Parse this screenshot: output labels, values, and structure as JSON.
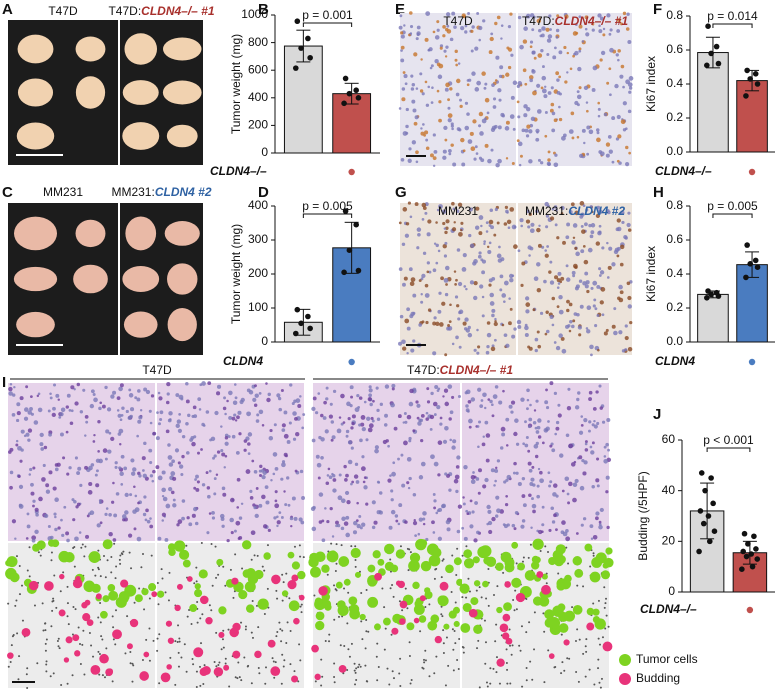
{
  "images": [
    {
      "letter": "A",
      "left": "T47D",
      "right_prefix": "T47D:",
      "right_gene": "CLDN4–/– #1",
      "gene_color": "#a8302c"
    },
    {
      "letter": "C",
      "left": "MM231",
      "right_prefix": "MM231:",
      "right_gene": "CLDN4 #2",
      "gene_color": "#2f62a3"
    },
    {
      "letter": "E",
      "left": "T47D",
      "right_prefix": "T47D:",
      "right_gene": "CLDN4–/– #1",
      "gene_color": "#a8302c"
    },
    {
      "letter": "G",
      "left": "MM231",
      "right_prefix": "MM231:",
      "right_gene": "CLDN4 #2",
      "gene_color": "#2f62a3"
    },
    {
      "letter": "I",
      "left": "T47D",
      "right_prefix": "T47D:",
      "right_gene": "CLDN4–/– #1",
      "gene_color": "#a8302c"
    }
  ],
  "legend": [
    {
      "name": "Tumor cells",
      "color": "#7ed321"
    },
    {
      "name": "Budding",
      "color": "#e8337a"
    }
  ],
  "chart_data": [
    {
      "type": "bar",
      "letter": "B",
      "ylabel": "Tumor weight (mg)",
      "group_label": "CLDN4–/–",
      "label_color": "#a8302c",
      "colors": [
        "#d9d9d9",
        "#c0504d"
      ],
      "values": [
        775,
        430
      ],
      "errors": [
        115,
        75
      ],
      "points": [
        [
          955,
          830,
          760,
          690,
          615
        ],
        [
          540,
          455,
          430,
          400,
          360
        ]
      ],
      "p_label": "p = 0.001",
      "ylim": [
        0,
        1000
      ],
      "yticks": [
        0,
        200,
        400,
        600,
        800,
        1000
      ]
    },
    {
      "type": "bar",
      "letter": "D",
      "ylabel": "Tumor weight (mg)",
      "group_label": "CLDN4",
      "label_color": "#2f62a3",
      "colors": [
        "#d9d9d9",
        "#4a7cc0"
      ],
      "values": [
        58,
        277
      ],
      "errors": [
        38,
        75
      ],
      "points": [
        [
          95,
          75,
          55,
          40,
          25
        ],
        [
          385,
          345,
          270,
          210,
          205
        ]
      ],
      "p_label": "p = 0.005",
      "ylim": [
        0,
        400
      ],
      "yticks": [
        0,
        100,
        200,
        300,
        400
      ]
    },
    {
      "type": "bar",
      "letter": "F",
      "ylabel": "Ki67 index",
      "group_label": "CLDN4–/–",
      "label_color": "#a8302c",
      "colors": [
        "#d9d9d9",
        "#c0504d"
      ],
      "values": [
        0.585,
        0.42
      ],
      "errors": [
        0.09,
        0.06
      ],
      "points": [
        [
          0.74,
          0.62,
          0.58,
          0.52,
          0.51
        ],
        [
          0.48,
          0.46,
          0.43,
          0.4,
          0.33
        ]
      ],
      "p_label": "p = 0.014",
      "ylim": [
        0,
        0.8
      ],
      "yticks": [
        {
          "value": 0,
          "label": "0.0"
        },
        0.2,
        0.4,
        0.6,
        0.8
      ]
    },
    {
      "type": "bar",
      "letter": "H",
      "ylabel": "Ki67 index",
      "group_label": "CLDN4",
      "label_color": "#2f62a3",
      "colors": [
        "#d9d9d9",
        "#4a7cc0"
      ],
      "values": [
        0.28,
        0.455
      ],
      "errors": [
        0.02,
        0.075
      ],
      "points": [
        [
          0.3,
          0.29,
          0.28,
          0.27,
          0.26
        ],
        [
          0.57,
          0.48,
          0.46,
          0.44,
          0.38
        ]
      ],
      "p_label": "p = 0.005",
      "ylim": [
        0,
        0.8
      ],
      "yticks": [
        {
          "value": 0,
          "label": "0.0"
        },
        0.2,
        0.4,
        0.6,
        0.8
      ]
    },
    {
      "type": "bar",
      "letter": "J",
      "ylabel": "Budding (/5HPF)",
      "group_label": "CLDN4–/–",
      "label_color": "#a8302c",
      "colors": [
        "#d9d9d9",
        "#c0504d"
      ],
      "values": [
        32,
        15.5
      ],
      "errors": [
        11,
        4.5
      ],
      "points": [
        [
          47,
          45,
          40,
          35,
          32,
          30,
          27,
          24,
          20,
          16
        ],
        [
          23,
          22,
          19,
          17,
          16,
          15,
          14,
          13,
          10,
          9
        ]
      ],
      "p_label": "p < 0.001",
      "ylim": [
        0,
        60
      ],
      "yticks": [
        0,
        20,
        40,
        60
      ]
    }
  ]
}
